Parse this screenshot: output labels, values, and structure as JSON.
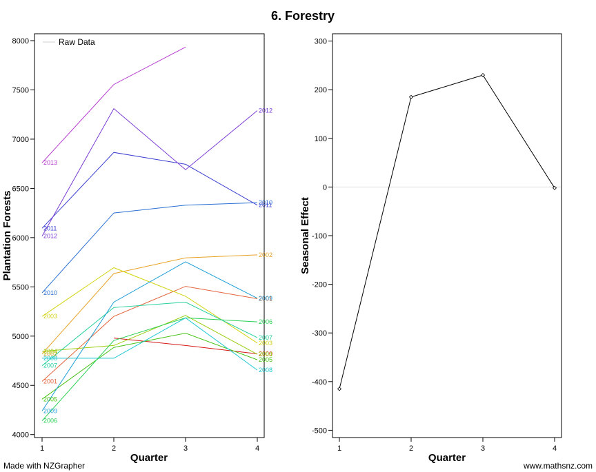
{
  "title": "6. Forestry",
  "footer": {
    "left": "Made with NZGrapher",
    "right": "www.mathsnz.com"
  },
  "chart_data": [
    {
      "type": "line",
      "xlabel": "Quarter",
      "ylabel": "Plantation Forests",
      "x": [
        1,
        2,
        3,
        4
      ],
      "xticks": [
        "1",
        "2",
        "3",
        "4"
      ],
      "ylim": [
        3970,
        8070
      ],
      "yticks": [
        "4000",
        "4500",
        "5000",
        "5500",
        "6000",
        "6500",
        "7000",
        "7500",
        "8000"
      ],
      "legend": {
        "label": "Raw Data",
        "position": "top-left"
      },
      "series": [
        {
          "name": "2000",
          "color": "#d51515",
          "values": [
            null,
            4980,
            4905,
            4820
          ],
          "label_ends": [
            "",
            "",
            "",
            "2000"
          ]
        },
        {
          "name": "2001",
          "color": "#e2643a",
          "values": [
            4540,
            5200,
            5505,
            5380
          ],
          "label_ends": [
            "2001",
            "",
            "",
            "2001"
          ]
        },
        {
          "name": "2002",
          "color": "#e9a227",
          "values": [
            4820,
            5635,
            5795,
            5825
          ],
          "label_ends": [
            "2002",
            "",
            "",
            "2002"
          ]
        },
        {
          "name": "2003",
          "color": "#d3d411",
          "values": [
            5200,
            5695,
            5405,
            4930
          ],
          "label_ends": [
            "2003",
            "",
            "",
            "2003"
          ]
        },
        {
          "name": "2004",
          "color": "#9acd0d",
          "values": [
            4845,
            4905,
            5210,
            4815
          ],
          "label_ends": [
            "2004",
            "",
            "",
            "2004"
          ]
        },
        {
          "name": "2005",
          "color": "#47c214",
          "values": [
            4360,
            4885,
            5030,
            4760
          ],
          "label_ends": [
            "2005",
            "",
            "",
            "2005"
          ]
        },
        {
          "name": "2006",
          "color": "#29cf52",
          "values": [
            4140,
            4955,
            5185,
            5145
          ],
          "label_ends": [
            "2006",
            "",
            "",
            "2006"
          ]
        },
        {
          "name": "2007",
          "color": "#22cf9a",
          "values": [
            4700,
            5290,
            5345,
            4985
          ],
          "label_ends": [
            "2007",
            "",
            "",
            "2007"
          ]
        },
        {
          "name": "2008",
          "color": "#1ec8d3",
          "values": [
            4775,
            4775,
            5185,
            4655
          ],
          "label_ends": [
            "2008",
            "",
            "",
            "2008"
          ]
        },
        {
          "name": "2009",
          "color": "#1a9dd6",
          "values": [
            4240,
            5345,
            5755,
            5385
          ],
          "label_ends": [
            "2009",
            "",
            "",
            "2009"
          ]
        },
        {
          "name": "2010",
          "color": "#2a6fd3",
          "values": [
            5440,
            6250,
            6330,
            6355
          ],
          "label_ends": [
            "2010",
            "",
            "",
            "2010"
          ]
        },
        {
          "name": "2011",
          "color": "#3a3fd0",
          "values": [
            6095,
            6865,
            6745,
            6330
          ],
          "label_ends": [
            "2011",
            "",
            "",
            "2011"
          ]
        },
        {
          "name": "2012",
          "color": "#7a3ad3",
          "values": [
            6015,
            7310,
            6690,
            7290
          ],
          "label_ends": [
            "2012",
            "",
            "",
            "2012"
          ]
        },
        {
          "name": "2013",
          "color": "#b63ad0",
          "values": [
            6760,
            7555,
            7935,
            null
          ],
          "label_ends": [
            "2013",
            "",
            "",
            ""
          ]
        }
      ]
    },
    {
      "type": "line",
      "xlabel": "Quarter",
      "ylabel": "Seasonal Effect",
      "x": [
        1,
        2,
        3,
        4
      ],
      "xticks": [
        "1",
        "2",
        "3",
        "4"
      ],
      "ylim": [
        -515,
        315
      ],
      "yticks": [
        "-500",
        "-400",
        "-300",
        "-200",
        "-100",
        "0",
        "100",
        "200",
        "300"
      ],
      "reference_line": 0,
      "series": [
        {
          "color": "#000000",
          "values": [
            -415,
            185,
            230,
            -2
          ]
        }
      ]
    }
  ]
}
